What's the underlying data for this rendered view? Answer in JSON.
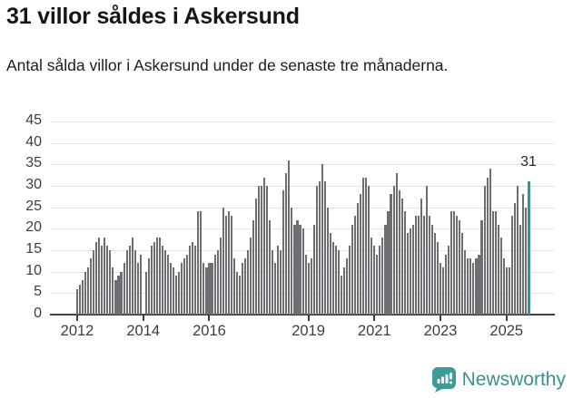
{
  "header": {
    "title": "31 villor såldes i Askersund",
    "subtitle": "Antal sålda villor i Askersund under de senaste tre månaderna."
  },
  "chart_data": {
    "type": "bar",
    "title": "31 villor såldes i Askersund",
    "x_start": "2012-01",
    "x_end": "2025-09",
    "x_frequency": "monthly",
    "values": [
      6,
      7,
      8,
      10,
      11,
      13,
      15,
      17,
      18,
      16,
      18,
      16,
      15,
      11,
      8,
      9,
      10,
      12,
      15,
      16,
      18,
      15,
      12,
      14,
      0,
      10,
      13,
      16,
      17,
      18,
      18,
      16,
      15,
      14,
      12,
      11,
      9,
      10,
      12,
      13,
      14,
      16,
      17,
      16,
      24,
      24,
      12,
      11,
      12,
      12,
      14,
      15,
      18,
      25,
      23,
      24,
      23,
      13,
      10,
      9,
      12,
      13,
      15,
      18,
      22,
      27,
      30,
      30,
      32,
      30,
      22,
      15,
      12,
      16,
      15,
      29,
      33,
      36,
      25,
      21,
      22,
      21,
      20,
      14,
      12,
      13,
      21,
      30,
      31,
      35,
      31,
      25,
      19,
      17,
      16,
      15,
      9,
      11,
      13,
      16,
      21,
      23,
      26,
      28,
      32,
      32,
      30,
      18,
      16,
      14,
      16,
      18,
      21,
      24,
      28,
      30,
      33,
      29,
      27,
      24,
      19,
      20,
      21,
      23,
      23,
      27,
      23,
      30,
      23,
      21,
      19,
      17,
      12,
      11,
      14,
      16,
      24,
      24,
      23,
      22,
      19,
      15,
      13,
      13,
      12,
      13,
      14,
      22,
      30,
      32,
      34,
      24,
      24,
      21,
      18,
      13,
      11,
      11,
      23,
      26,
      30,
      21,
      28,
      25,
      31
    ],
    "highlight": {
      "index": 164,
      "value": 31,
      "label": "31",
      "color": "#17a29e"
    },
    "bar_color": "#6f6e73",
    "grid_color": "#e4e4e4",
    "axis_color": "#404040",
    "ylim": [
      0,
      45
    ],
    "yticks": [
      0,
      5,
      10,
      15,
      20,
      25,
      30,
      35,
      40,
      45
    ],
    "xticks": [
      {
        "label": "2012",
        "month_index": 0
      },
      {
        "label": "2014",
        "month_index": 24
      },
      {
        "label": "2016",
        "month_index": 48
      },
      {
        "label": "2019",
        "month_index": 84
      },
      {
        "label": "2021",
        "month_index": 108
      },
      {
        "label": "2023",
        "month_index": 132
      },
      {
        "label": "2025",
        "month_index": 156
      }
    ],
    "grid": true,
    "legend": "none",
    "xlabel": "",
    "ylabel": ""
  },
  "footer": {
    "brand": "Newsworthy",
    "logo_icon": "newsworthy-speech-bubble-chart-icon",
    "brand_color": "#3a918d",
    "logo_fill": "#3e9b97"
  }
}
